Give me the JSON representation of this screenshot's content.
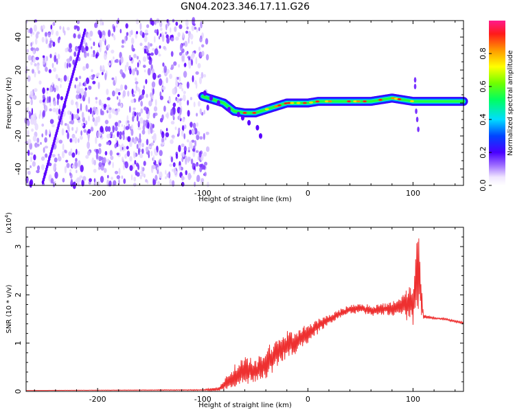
{
  "title": "GN04.2023.346.17.11.G26",
  "chart_data": [
    {
      "type": "heatmap",
      "xlabel": "Height of straight line (km)",
      "ylabel": "Frequency (Hz)",
      "xlim": [
        -268,
        148
      ],
      "ylim": [
        -50,
        50
      ],
      "xticks": [
        -200,
        -100,
        0,
        100
      ],
      "yticks": [
        -40,
        -20,
        0,
        20,
        40
      ],
      "colorbar": {
        "label": "Normalized spectral amplitude",
        "range": [
          0,
          1
        ],
        "ticks": [
          0.0,
          0.2,
          0.4,
          0.6,
          0.8
        ]
      },
      "ridge": {
        "x": [
          -100,
          -90,
          -80,
          -70,
          -60,
          -50,
          -40,
          -30,
          -20,
          -10,
          0,
          10,
          20,
          40,
          60,
          80,
          90,
          100,
          110,
          148
        ],
        "y": [
          4,
          2,
          0,
          -5,
          -6,
          -6,
          -4,
          -2,
          0,
          0,
          0,
          1,
          1,
          1,
          1,
          3,
          2,
          1,
          1,
          1
        ]
      }
    },
    {
      "type": "line",
      "xlabel": "Height of straight line (km)",
      "ylabel": "SNR (10 * v/v)",
      "yscale_label": "(x10",
      "yscale_exp": "4",
      "xlim": [
        -268,
        148
      ],
      "ylim": [
        0,
        3.4
      ],
      "xticks": [
        -200,
        -100,
        0,
        100
      ],
      "yticks": [
        0,
        1,
        2,
        3
      ],
      "color": "#ee3030",
      "series": [
        {
          "x": [
            -268,
            -100,
            -85,
            -70,
            -60,
            -50,
            -40,
            -30,
            -20,
            -10,
            0,
            10,
            20,
            30,
            40,
            50,
            60,
            70,
            80,
            90,
            100,
            105,
            110,
            120,
            130,
            140,
            148
          ],
          "y": [
            0.02,
            0.03,
            0.05,
            0.3,
            0.45,
            0.4,
            0.55,
            0.8,
            0.95,
            1.05,
            1.2,
            1.35,
            1.5,
            1.6,
            1.7,
            1.72,
            1.68,
            1.7,
            1.72,
            1.8,
            1.85,
            2.5,
            1.55,
            1.52,
            1.5,
            1.45,
            1.42
          ],
          "amp": [
            0,
            0.01,
            0.04,
            0.25,
            0.3,
            0.25,
            0.35,
            0.3,
            0.3,
            0.25,
            0.2,
            0.15,
            0.1,
            0.1,
            0.1,
            0.1,
            0.12,
            0.12,
            0.15,
            0.25,
            0.5,
            1.0,
            0.05,
            0.02,
            0.02,
            0.02,
            0.02
          ]
        }
      ]
    }
  ]
}
